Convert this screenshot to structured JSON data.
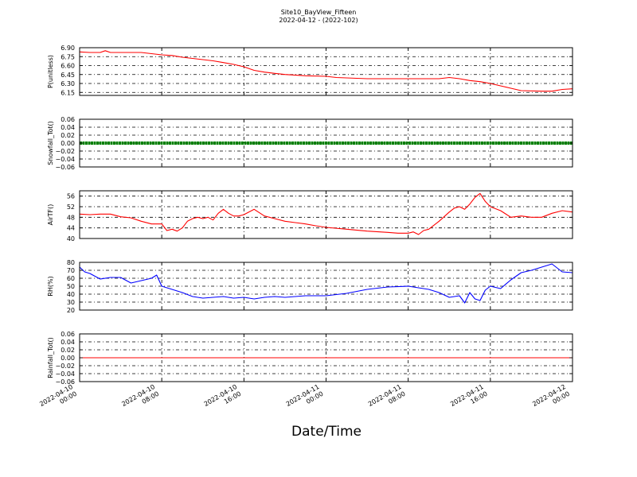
{
  "figure": {
    "title": "Site10_BayView_Fifteen",
    "subtitle": "2022-04-12 - (2022-102)",
    "xlabel": "Date/Time"
  },
  "colors": {
    "red": "#ff0000",
    "green": "#008000",
    "blue": "#0000ff",
    "grid": "#000000"
  },
  "chart_data": [
    {
      "type": "line",
      "ylabel": "P(unitless)",
      "ylim": [
        6.1,
        6.9
      ],
      "yticks": [
        "6.90",
        "6.75",
        "6.60",
        "6.45",
        "6.30",
        "6.15"
      ],
      "ytick_values": [
        6.9,
        6.75,
        6.6,
        6.45,
        6.3,
        6.15
      ],
      "xlim": [
        "2022-04-10 00:00",
        "2022-04-12 00:00"
      ],
      "grid": true,
      "series": [
        {
          "color": "#ff0000",
          "x": [
            "2022-04-10 00:00",
            "2022-04-10 01:00",
            "2022-04-10 02:00",
            "2022-04-10 02:30",
            "2022-04-10 03:00",
            "2022-04-10 04:00",
            "2022-04-10 06:00",
            "2022-04-10 08:00",
            "2022-04-10 09:00",
            "2022-04-10 10:00",
            "2022-04-10 11:00",
            "2022-04-10 12:00",
            "2022-04-10 13:00",
            "2022-04-10 14:00",
            "2022-04-10 15:00",
            "2022-04-10 16:00",
            "2022-04-10 17:00",
            "2022-04-10 18:00",
            "2022-04-10 19:00",
            "2022-04-10 20:00",
            "2022-04-10 22:00",
            "2022-04-11 00:00",
            "2022-04-11 01:00",
            "2022-04-11 04:00",
            "2022-04-11 08:00",
            "2022-04-11 10:00",
            "2022-04-11 11:00",
            "2022-04-11 12:00",
            "2022-04-11 13:00",
            "2022-04-11 14:00",
            "2022-04-11 15:00",
            "2022-04-11 16:00",
            "2022-04-11 17:00",
            "2022-04-11 18:00",
            "2022-04-11 19:00",
            "2022-04-11 21:00",
            "2022-04-11 22:00",
            "2022-04-11 23:00",
            "2022-04-12 00:00"
          ],
          "y": [
            6.83,
            6.82,
            6.82,
            6.85,
            6.82,
            6.82,
            6.82,
            6.78,
            6.77,
            6.74,
            6.72,
            6.7,
            6.68,
            6.65,
            6.62,
            6.58,
            6.52,
            6.49,
            6.47,
            6.45,
            6.43,
            6.42,
            6.4,
            6.38,
            6.38,
            6.38,
            6.38,
            6.4,
            6.38,
            6.35,
            6.33,
            6.3,
            6.26,
            6.22,
            6.18,
            6.17,
            6.17,
            6.2,
            6.21
          ]
        }
      ]
    },
    {
      "type": "scatter",
      "ylabel": "Snowfall_Tot()",
      "ylim": [
        -0.06,
        0.06
      ],
      "yticks": [
        "0.06",
        "0.04",
        "0.02",
        "0.00",
        "−0.02",
        "−0.04",
        "−0.06"
      ],
      "ytick_values": [
        0.06,
        0.04,
        0.02,
        0.0,
        -0.02,
        -0.04,
        -0.06
      ],
      "xlim": [
        "2022-04-10 00:00",
        "2022-04-12 00:00"
      ],
      "grid": true,
      "series": [
        {
          "color": "#008000",
          "constant": 0.0
        }
      ]
    },
    {
      "type": "line",
      "ylabel": "AirTF()",
      "ylim": [
        40,
        58
      ],
      "yticks": [
        "56",
        "52",
        "48",
        "44",
        "40"
      ],
      "ytick_values": [
        56,
        52,
        48,
        44,
        40
      ],
      "xlim": [
        "2022-04-10 00:00",
        "2022-04-12 00:00"
      ],
      "grid": true,
      "series": [
        {
          "color": "#ff0000",
          "x": [
            "2022-04-10 00:00",
            "2022-04-10 01:00",
            "2022-04-10 02:00",
            "2022-04-10 03:00",
            "2022-04-10 04:00",
            "2022-04-10 05:00",
            "2022-04-10 06:00",
            "2022-04-10 07:00",
            "2022-04-10 08:00",
            "2022-04-10 08:30",
            "2022-04-10 09:00",
            "2022-04-10 09:30",
            "2022-04-10 10:00",
            "2022-04-10 10:30",
            "2022-04-10 11:00",
            "2022-04-10 11:30",
            "2022-04-10 12:00",
            "2022-04-10 12:30",
            "2022-04-10 13:00",
            "2022-04-10 13:30",
            "2022-04-10 14:00",
            "2022-04-10 14:30",
            "2022-04-10 15:00",
            "2022-04-10 15:30",
            "2022-04-10 16:00",
            "2022-04-10 17:00",
            "2022-04-10 18:00",
            "2022-04-10 19:00",
            "2022-04-10 20:00",
            "2022-04-10 21:00",
            "2022-04-10 22:00",
            "2022-04-10 23:00",
            "2022-04-11 00:00",
            "2022-04-11 02:00",
            "2022-04-11 04:00",
            "2022-04-11 06:00",
            "2022-04-11 07:00",
            "2022-04-11 08:00",
            "2022-04-11 08:30",
            "2022-04-11 09:00",
            "2022-04-11 09:30",
            "2022-04-11 10:00",
            "2022-04-11 11:00",
            "2022-04-11 12:00",
            "2022-04-11 12:30",
            "2022-04-11 13:00",
            "2022-04-11 13:30",
            "2022-04-11 14:00",
            "2022-04-11 14:30",
            "2022-04-11 15:00",
            "2022-04-11 15:30",
            "2022-04-11 16:00",
            "2022-04-11 17:00",
            "2022-04-11 18:00",
            "2022-04-11 19:00",
            "2022-04-11 20:00",
            "2022-04-11 21:00",
            "2022-04-11 22:00",
            "2022-04-11 23:00",
            "2022-04-12 00:00"
          ],
          "y": [
            49.2,
            49.0,
            49.2,
            49.2,
            48.2,
            47.8,
            46.5,
            45.5,
            45.5,
            43.0,
            43.5,
            42.8,
            44.0,
            46.5,
            47.5,
            48.0,
            47.5,
            48.0,
            47.0,
            49.5,
            51.0,
            49.5,
            48.5,
            48.5,
            49.0,
            51.0,
            48.5,
            47.5,
            46.5,
            46.0,
            45.5,
            44.8,
            44.2,
            43.5,
            42.8,
            42.3,
            42.0,
            42.0,
            42.5,
            41.5,
            43.0,
            43.5,
            46.5,
            50.0,
            51.5,
            52.0,
            51.0,
            53.0,
            55.5,
            57.0,
            54.0,
            52.0,
            50.5,
            48.0,
            48.5,
            48.0,
            48.0,
            49.5,
            50.5,
            50.0
          ]
        }
      ]
    },
    {
      "type": "line",
      "ylabel": "RH(%)",
      "ylim": [
        20,
        80
      ],
      "yticks": [
        "80",
        "70",
        "60",
        "50",
        "40",
        "30",
        "20"
      ],
      "ytick_values": [
        80,
        70,
        60,
        50,
        40,
        30,
        20
      ],
      "xlim": [
        "2022-04-10 00:00",
        "2022-04-12 00:00"
      ],
      "grid": true,
      "series": [
        {
          "color": "#0000ff",
          "x": [
            "2022-04-10 00:00",
            "2022-04-10 00:30",
            "2022-04-10 01:00",
            "2022-04-10 02:00",
            "2022-04-10 03:00",
            "2022-04-10 04:00",
            "2022-04-10 05:00",
            "2022-04-10 06:00",
            "2022-04-10 07:00",
            "2022-04-10 07:30",
            "2022-04-10 08:00",
            "2022-04-10 09:00",
            "2022-04-10 10:00",
            "2022-04-10 11:00",
            "2022-04-10 12:00",
            "2022-04-10 13:00",
            "2022-04-10 14:00",
            "2022-04-10 15:00",
            "2022-04-10 16:00",
            "2022-04-10 17:00",
            "2022-04-10 18:00",
            "2022-04-10 19:00",
            "2022-04-10 20:00",
            "2022-04-10 21:00",
            "2022-04-10 22:00",
            "2022-04-11 00:00",
            "2022-04-11 02:00",
            "2022-04-11 04:00",
            "2022-04-11 06:00",
            "2022-04-11 08:00",
            "2022-04-11 10:00",
            "2022-04-11 11:00",
            "2022-04-11 12:00",
            "2022-04-11 13:00",
            "2022-04-11 13:30",
            "2022-04-11 14:00",
            "2022-04-11 14:30",
            "2022-04-11 15:00",
            "2022-04-11 15:30",
            "2022-04-11 16:00",
            "2022-04-11 17:00",
            "2022-04-11 18:00",
            "2022-04-11 19:00",
            "2022-04-11 20:00",
            "2022-04-11 21:00",
            "2022-04-11 22:00",
            "2022-04-11 23:00",
            "2022-04-12 00:00"
          ],
          "y": [
            74,
            68,
            66,
            59,
            61,
            61,
            54,
            57,
            60,
            64,
            50,
            46,
            42,
            37,
            35,
            36,
            37,
            35,
            36,
            34,
            36,
            37,
            36,
            37,
            38,
            38,
            41,
            46,
            49,
            50,
            46,
            42,
            36,
            38,
            29,
            42,
            34,
            32,
            45,
            50,
            47,
            58,
            67,
            70,
            74,
            78,
            68,
            67
          ]
        }
      ]
    },
    {
      "type": "line",
      "ylabel": "Rainfall_Tot()",
      "ylim": [
        -0.06,
        0.06
      ],
      "yticks": [
        "0.06",
        "0.04",
        "0.02",
        "0.00",
        "−0.02",
        "−0.04",
        "−0.06"
      ],
      "ytick_values": [
        0.06,
        0.04,
        0.02,
        0.0,
        -0.02,
        -0.04,
        -0.06
      ],
      "xlim": [
        "2022-04-10 00:00",
        "2022-04-12 00:00"
      ],
      "grid": true,
      "series": [
        {
          "color": "#ff0000",
          "constant": 0.0
        }
      ]
    }
  ],
  "xticks": [
    {
      "value": "2022-04-10 00:00",
      "line1": "2022-04-10",
      "line2": "00:00"
    },
    {
      "value": "2022-04-10 08:00",
      "line1": "2022-04-10",
      "line2": "08:00"
    },
    {
      "value": "2022-04-10 16:00",
      "line1": "2022-04-10",
      "line2": "16:00"
    },
    {
      "value": "2022-04-11 00:00",
      "line1": "2022-04-11",
      "line2": "00:00"
    },
    {
      "value": "2022-04-11 08:00",
      "line1": "2022-04-11",
      "line2": "08:00"
    },
    {
      "value": "2022-04-11 16:00",
      "line1": "2022-04-11",
      "line2": "16:00"
    },
    {
      "value": "2022-04-12 00:00",
      "line1": "2022-04-12",
      "line2": "00:00"
    }
  ]
}
